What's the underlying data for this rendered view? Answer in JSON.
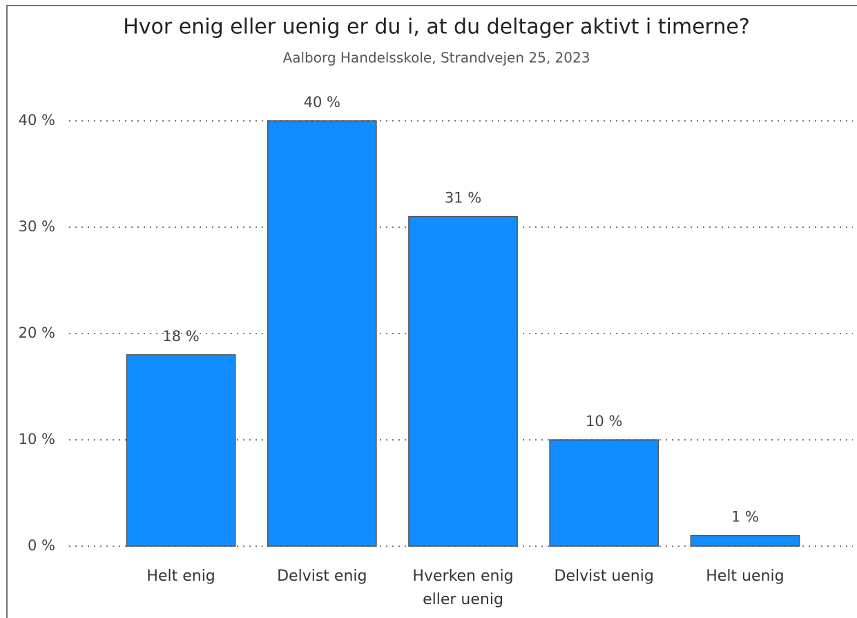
{
  "chart_data": {
    "type": "bar",
    "title": "Hvor enig eller uenig er du i, at du deltager aktivt i timerne?",
    "subtitle": "Aalborg Handelsskole, Strandvejen 25, 2023",
    "categories": [
      "Helt enig",
      "Delvist enig",
      "Hverken enig eller uenig",
      "Delvist uenig",
      "Helt uenig"
    ],
    "values": [
      18,
      40,
      31,
      10,
      1
    ],
    "value_labels": [
      "18 %",
      "40 %",
      "31 %",
      "10 %",
      "1 %"
    ],
    "color": "#118dff",
    "ylim": [
      0,
      40
    ],
    "yticks": [
      {
        "value": 0,
        "label": "0 %"
      },
      {
        "value": 10,
        "label": "10 %"
      },
      {
        "value": 20,
        "label": "20 %"
      },
      {
        "value": 30,
        "label": "30 %"
      },
      {
        "value": 40,
        "label": "40 %"
      }
    ],
    "grid": true
  }
}
